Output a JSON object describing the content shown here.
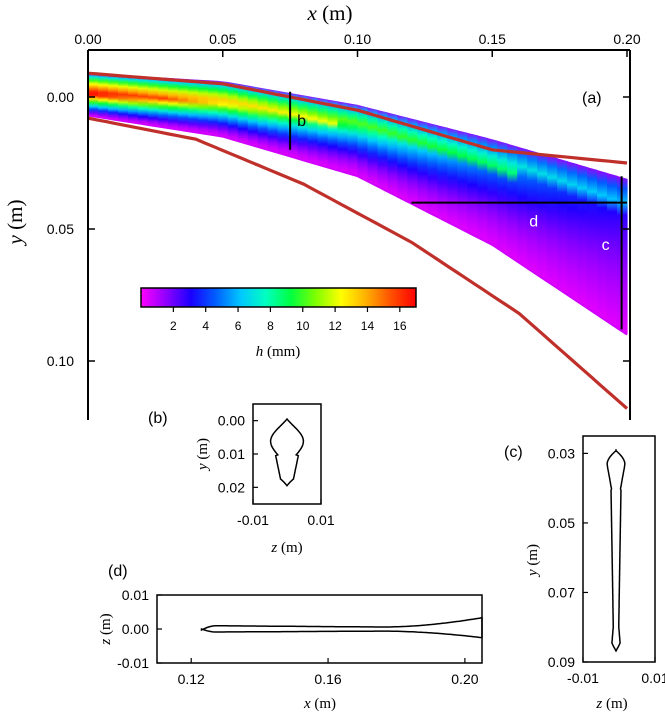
{
  "chart_data": [
    {
      "id": "a",
      "type": "heatmap",
      "panel_label": "(a)",
      "xlabel_var": "x",
      "xlabel_unit": "(m)",
      "ylabel_var": "y",
      "ylabel_unit": "(m)",
      "xlim": [
        0.0,
        0.2
      ],
      "ylim": [
        -0.01,
        0.12
      ],
      "y_inverted": true,
      "xticks": [
        "0.00",
        "0.05",
        "0.10",
        "0.15",
        "0.20"
      ],
      "xtick_values": [
        0.0,
        0.05,
        0.1,
        0.15,
        0.2
      ],
      "yticks": [
        "0.00",
        "0.05",
        "0.10"
      ],
      "ytick_values": [
        0.0,
        0.05,
        0.1
      ],
      "colorbar": {
        "label_var": "h",
        "label_unit": "(mm)",
        "range": [
          0,
          17
        ],
        "ticks": [
          "2",
          "4",
          "6",
          "8",
          "10",
          "12",
          "14",
          "16"
        ],
        "tick_values": [
          2,
          4,
          6,
          8,
          10,
          12,
          14,
          16
        ],
        "colors": [
          "#ff00ff",
          "#9000ff",
          "#1a00ff",
          "#0060ff",
          "#00c8ff",
          "#00ffc0",
          "#00ff40",
          "#80ff00",
          "#ffff00",
          "#ffb000",
          "#ff5000",
          "#ff0000"
        ]
      },
      "outer_curves": [
        {
          "name": "upper",
          "color": "#c0302b",
          "x": [
            0.0,
            0.05,
            0.1,
            0.15,
            0.2
          ],
          "y": [
            -0.009,
            -0.005,
            0.005,
            0.02,
            0.025
          ]
        },
        {
          "name": "lower",
          "color": "#c0302b",
          "x": [
            0.0,
            0.04,
            0.08,
            0.12,
            0.16,
            0.2
          ],
          "y": [
            0.008,
            0.016,
            0.033,
            0.055,
            0.082,
            0.118
          ]
        }
      ],
      "film_top": {
        "x": [
          0.0,
          0.05,
          0.1,
          0.15,
          0.2
        ],
        "y": [
          -0.009,
          -0.006,
          0.003,
          0.016,
          0.031
        ]
      },
      "film_bottom": {
        "x": [
          0.0,
          0.05,
          0.1,
          0.15,
          0.2
        ],
        "y": [
          0.007,
          0.015,
          0.03,
          0.056,
          0.09
        ]
      },
      "cuts": [
        {
          "label": "b",
          "kind": "vertical",
          "x": 0.075,
          "y0": -0.002,
          "y1": 0.02
        },
        {
          "label": "d",
          "kind": "horizontal",
          "y": 0.04,
          "x0": 0.12,
          "x1": 0.2
        },
        {
          "label": "c",
          "kind": "vertical",
          "x": 0.198,
          "y0": 0.03,
          "y1": 0.088
        }
      ]
    },
    {
      "id": "b",
      "type": "line",
      "panel_label": "(b)",
      "xlabel_var": "z",
      "xlabel_unit": "(m)",
      "ylabel_var": "y",
      "ylabel_unit": "(m)",
      "xlim": [
        -0.01,
        0.01
      ],
      "ylim": [
        -0.005,
        0.025
      ],
      "y_inverted": true,
      "xticks": [
        "-0.01",
        "0.01"
      ],
      "xtick_values": [
        -0.01,
        0.01
      ],
      "yticks": [
        "0.00",
        "0.01",
        "0.02"
      ],
      "ytick_values": [
        0.0,
        0.01,
        0.02
      ],
      "shape": "pear"
    },
    {
      "id": "c",
      "type": "line",
      "panel_label": "(c)",
      "xlabel_var": "z",
      "xlabel_unit": "(m)",
      "ylabel_var": "y",
      "ylabel_unit": "(m)",
      "xlim": [
        -0.01,
        0.01
      ],
      "ylim": [
        0.025,
        0.09
      ],
      "y_inverted": true,
      "xticks": [
        "-0.01",
        "0.01"
      ],
      "xtick_values": [
        -0.01,
        0.01
      ],
      "yticks": [
        "0.03",
        "0.05",
        "0.07",
        "0.09"
      ],
      "ytick_values": [
        0.03,
        0.05,
        0.07,
        0.09
      ],
      "shape": "elongated"
    },
    {
      "id": "d",
      "type": "line",
      "panel_label": "(d)",
      "xlabel_var": "x",
      "xlabel_unit": "(m)",
      "ylabel_var": "z",
      "ylabel_unit": "(m)",
      "xlim": [
        0.11,
        0.205
      ],
      "ylim": [
        -0.01,
        0.01
      ],
      "y_inverted": false,
      "xticks": [
        "0.12",
        "0.16",
        "0.20"
      ],
      "xtick_values": [
        0.12,
        0.16,
        0.2
      ],
      "yticks": [
        "0.01",
        "0.00",
        "-0.01"
      ],
      "ytick_values": [
        0.01,
        0.0,
        -0.01
      ],
      "shape": "horizontal-tongue"
    }
  ]
}
